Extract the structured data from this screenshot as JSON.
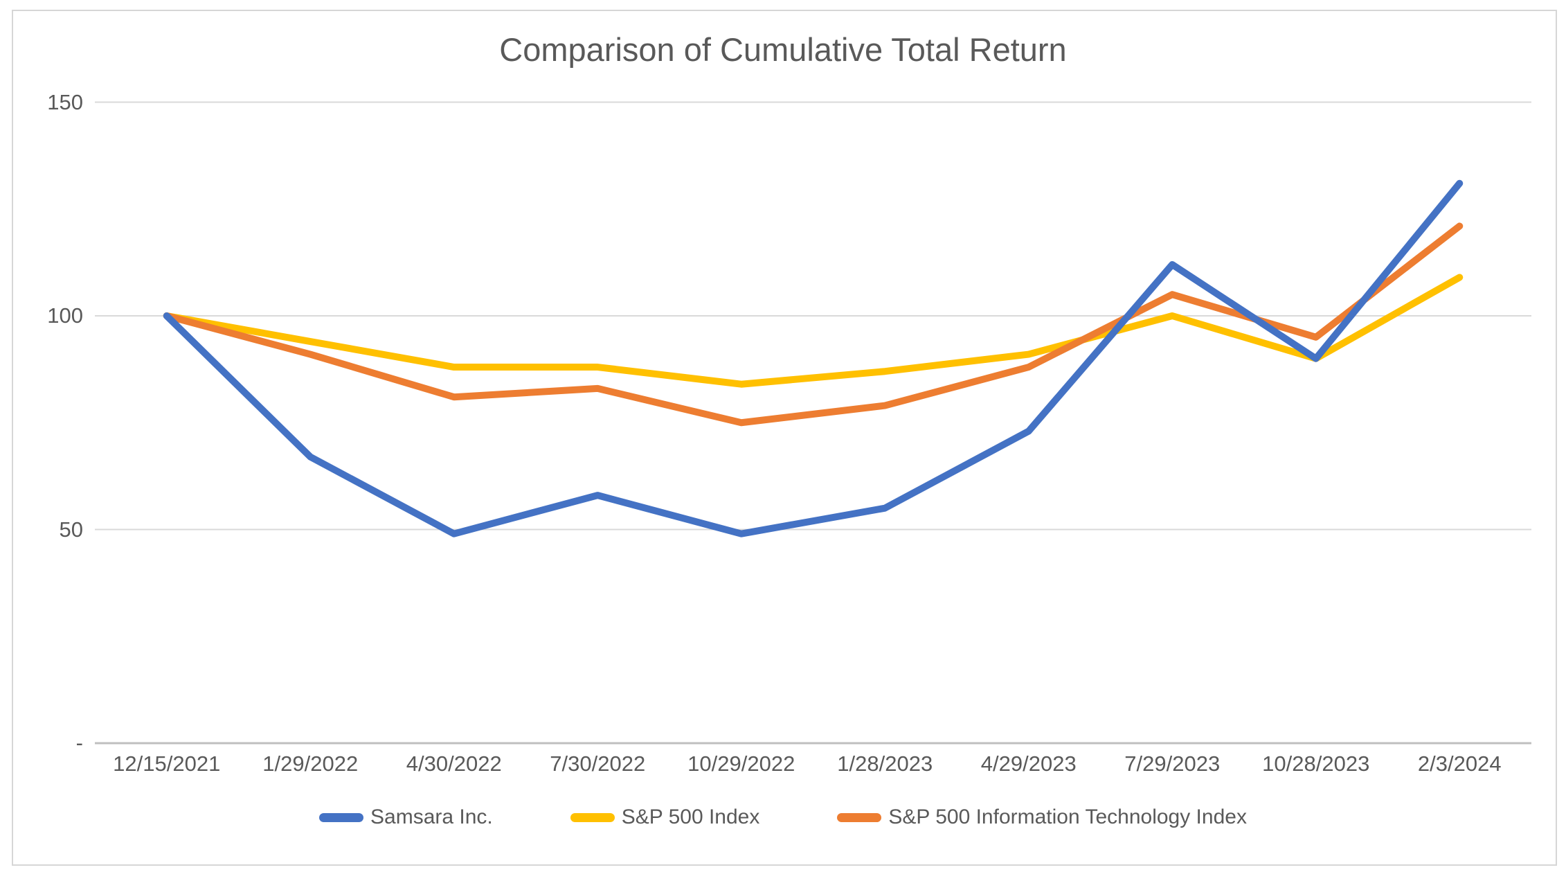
{
  "chart_data": {
    "type": "line",
    "title": "Comparison of Cumulative Total Return",
    "x_categories": [
      "12/15/2021",
      "1/29/2022",
      "4/30/2022",
      "7/30/2022",
      "10/29/2022",
      "1/28/2023",
      "4/29/2023",
      "7/29/2023",
      "10/28/2023",
      "2/3/2024"
    ],
    "series": [
      {
        "name": "Samsara Inc.",
        "color": "#4472C4",
        "values": [
          100,
          67,
          49,
          58,
          49,
          55,
          73,
          112,
          90,
          131
        ]
      },
      {
        "name": "S&P 500 Index",
        "color": "#FFC000",
        "values": [
          100,
          94,
          88,
          88,
          84,
          87,
          91,
          100,
          90,
          109
        ]
      },
      {
        "name": "S&P 500 Information Technology Index",
        "color": "#ED7D31",
        "values": [
          100,
          91,
          81,
          83,
          75,
          79,
          88,
          105,
          95,
          121
        ]
      }
    ],
    "y_axis": {
      "ticks": [
        {
          "label": "150",
          "value": 150
        },
        {
          "label": "100",
          "value": 100
        },
        {
          "label": "50",
          "value": 50
        },
        {
          "label": "-",
          "value": 0
        }
      ],
      "ylim": [
        0,
        150
      ],
      "gridlines": true
    },
    "legend_position": "bottom",
    "colors": {
      "gridline": "#d9d9d9",
      "axis_line": "#bfbfbf",
      "text": "#595959",
      "border": "#d6d6d6"
    }
  }
}
